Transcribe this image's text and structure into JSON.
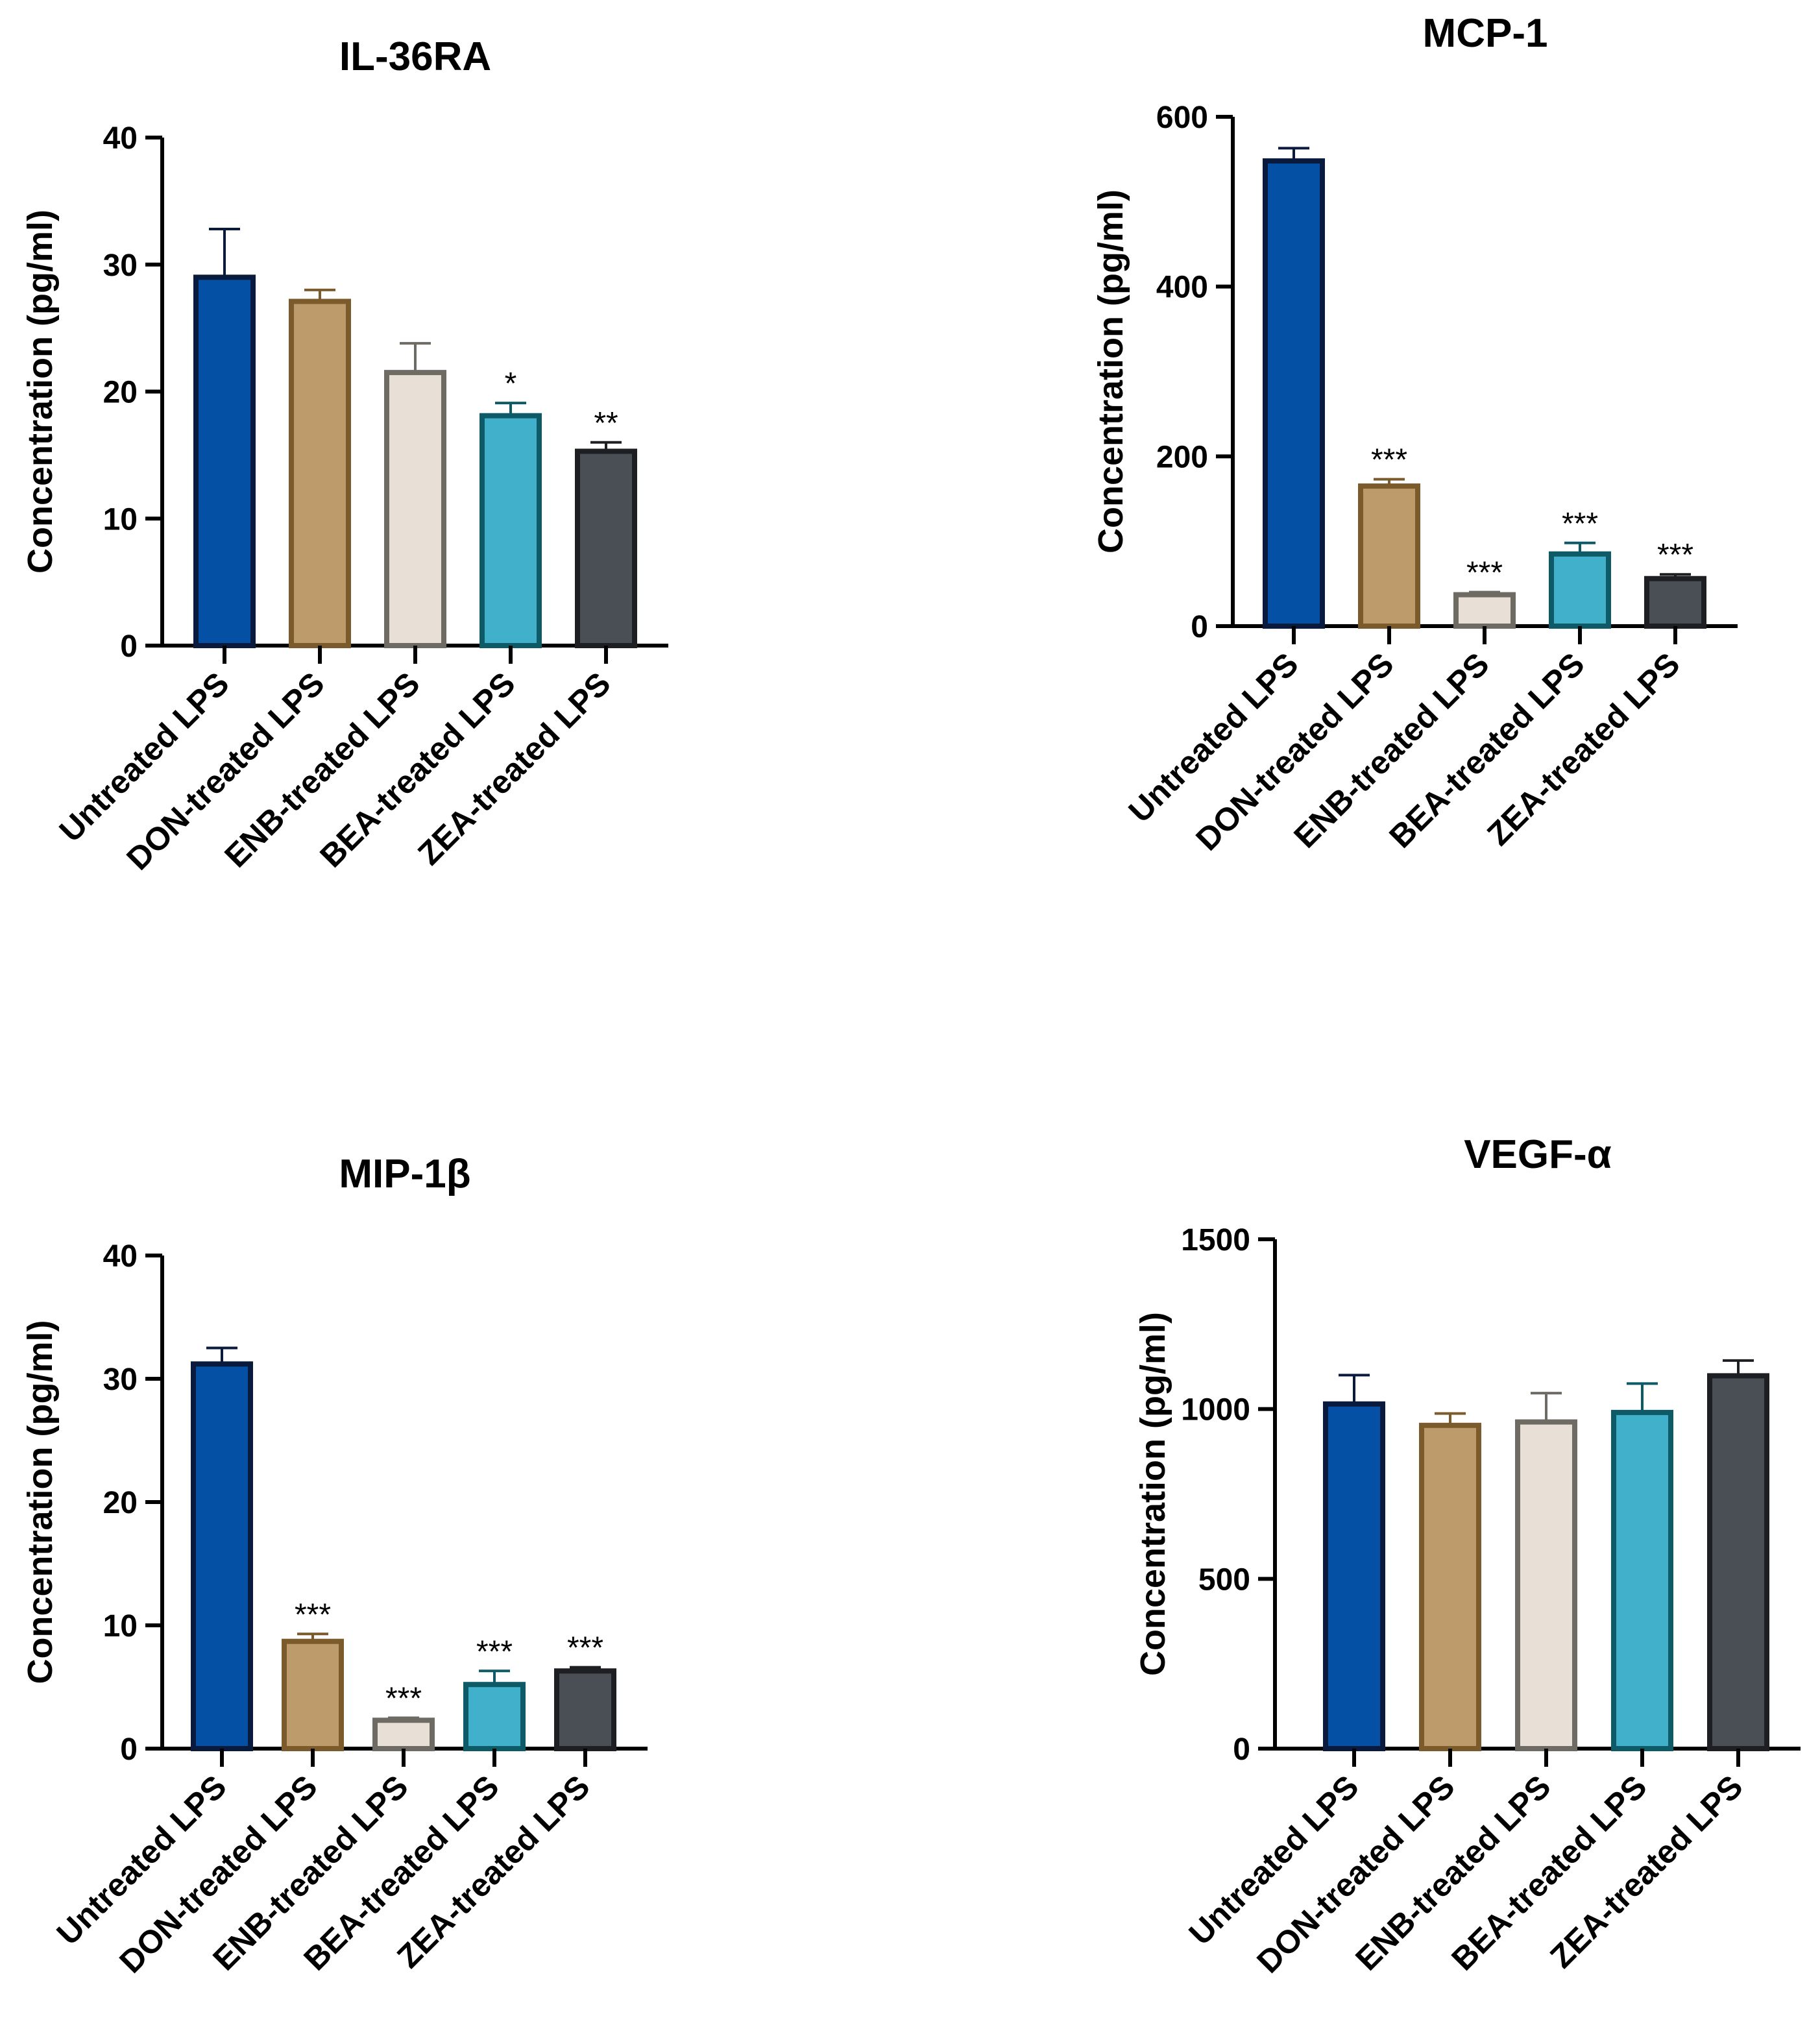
{
  "figure": {
    "categories": [
      "Untreated LPS",
      "DON-treated LPS",
      "ENB-treated LPS",
      "BEA-treated LPS",
      "ZEA-treated LPS"
    ],
    "series_colors": {
      "fills": [
        "#0350a5",
        "#be9b6a",
        "#e8e0d6",
        "#41b1cb",
        "#4a4e55"
      ],
      "strokes": [
        "#0a1a3c",
        "#7b5a2c",
        "#6e6a64",
        "#0e5a66",
        "#1d1f23"
      ]
    }
  },
  "chart_data": [
    {
      "type": "bar",
      "title": "IL-36RA",
      "ylabel": "Concentration (pg/ml)",
      "xlabel": "",
      "ylim": [
        0,
        40
      ],
      "yticks": [
        0,
        10,
        20,
        30,
        40
      ],
      "categories": [
        "Untreated LPS",
        "DON-treated LPS",
        "ENB-treated LPS",
        "BEA-treated LPS",
        "ZEA-treated LPS"
      ],
      "values": [
        29,
        27.1,
        21.5,
        18.1,
        15.3
      ],
      "errors": [
        3.8,
        0.9,
        2.3,
        1.0,
        0.7
      ],
      "significance": [
        "",
        "",
        "",
        "*",
        "**"
      ]
    },
    {
      "type": "bar",
      "title": "MCP-1",
      "ylabel": "Concentration (pg/ml)",
      "xlabel": "",
      "ylim": [
        0,
        600
      ],
      "yticks": [
        0,
        200,
        400,
        600
      ],
      "categories": [
        "Untreated LPS",
        "DON-treated LPS",
        "ENB-treated LPS",
        "BEA-treated LPS",
        "ZEA-treated LPS"
      ],
      "values": [
        548,
        165,
        37,
        85,
        56
      ],
      "errors": [
        15,
        8,
        3,
        13,
        5
      ],
      "significance": [
        "",
        "***",
        "***",
        "***",
        "***"
      ]
    },
    {
      "type": "bar",
      "title": "MIP-1β",
      "ylabel": "Concentration (pg/ml)",
      "xlabel": "",
      "ylim": [
        0,
        40
      ],
      "yticks": [
        0,
        10,
        20,
        30,
        40
      ],
      "categories": [
        "Untreated LPS",
        "DON-treated LPS",
        "ENB-treated LPS",
        "BEA-treated LPS",
        "ZEA-treated LPS"
      ],
      "values": [
        31.2,
        8.7,
        2.3,
        5.2,
        6.3
      ],
      "errors": [
        1.3,
        0.6,
        0.2,
        1.1,
        0.3
      ],
      "significance": [
        "",
        "***",
        "***",
        "***",
        "***"
      ]
    },
    {
      "type": "bar",
      "title": "VEGF-α",
      "ylabel": "Concentration (pg/ml)",
      "xlabel": "",
      "ylim": [
        0,
        1500
      ],
      "yticks": [
        0,
        500,
        1000,
        1500
      ],
      "categories": [
        "Untreated LPS",
        "DON-treated LPS",
        "ENB-treated LPS",
        "BEA-treated LPS",
        "ZEA-treated LPS"
      ],
      "values": [
        1015,
        952,
        962,
        990,
        1098
      ],
      "errors": [
        85,
        35,
        85,
        85,
        45
      ],
      "significance": [
        "",
        "",
        "",
        "",
        ""
      ]
    }
  ]
}
